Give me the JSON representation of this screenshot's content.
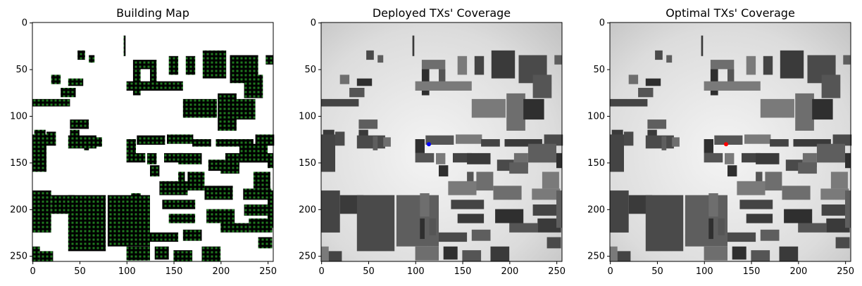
{
  "chart_data": [
    {
      "type": "heatmap",
      "title": "Building Map",
      "xlim": [
        0,
        255
      ],
      "ylim": [
        255,
        0
      ],
      "xticks": [
        0,
        50,
        100,
        150,
        200,
        250
      ],
      "yticks": [
        0,
        50,
        100,
        150,
        200,
        250
      ],
      "grid": false,
      "style": "binary",
      "markers": []
    },
    {
      "type": "heatmap",
      "title": "Deployed TXs' Coverage",
      "xlim": [
        0,
        255
      ],
      "ylim": [
        255,
        0
      ],
      "xticks": [
        0,
        50,
        100,
        150,
        200,
        250
      ],
      "yticks": [
        0,
        50,
        100,
        150,
        200,
        250
      ],
      "grid": false,
      "style": "gray",
      "markers": [
        {
          "x": 114,
          "y": 130,
          "color": "#0000ff"
        }
      ]
    },
    {
      "type": "heatmap",
      "title": "Optimal TXs' Coverage",
      "xlim": [
        0,
        255
      ],
      "ylim": [
        255,
        0
      ],
      "xticks": [
        0,
        50,
        100,
        150,
        200,
        250
      ],
      "yticks": [
        0,
        50,
        100,
        150,
        200,
        250
      ],
      "grid": false,
      "style": "gray",
      "markers": [
        {
          "x": 123,
          "y": 130,
          "color": "#ff0000"
        }
      ]
    }
  ],
  "buildings": [
    [
      97,
      14,
      2,
      22
    ],
    [
      48,
      30,
      8,
      10
    ],
    [
      60,
      35,
      6,
      8
    ],
    [
      107,
      40,
      25,
      10
    ],
    [
      107,
      50,
      8,
      28
    ],
    [
      125,
      50,
      7,
      16
    ],
    [
      145,
      36,
      10,
      20
    ],
    [
      163,
      36,
      10,
      20
    ],
    [
      181,
      30,
      25,
      30
    ],
    [
      210,
      35,
      30,
      30
    ],
    [
      248,
      35,
      8,
      10
    ],
    [
      20,
      56,
      10,
      10
    ],
    [
      38,
      60,
      16,
      8
    ],
    [
      30,
      70,
      16,
      10
    ],
    [
      100,
      63,
      60,
      10
    ],
    [
      0,
      82,
      40,
      8
    ],
    [
      2,
      115,
      12,
      20
    ],
    [
      15,
      117,
      10,
      15
    ],
    [
      40,
      104,
      20,
      10
    ],
    [
      197,
      76,
      20,
      40
    ],
    [
      215,
      82,
      22,
      22
    ],
    [
      225,
      56,
      20,
      25
    ],
    [
      160,
      82,
      36,
      20
    ],
    [
      0,
      120,
      15,
      40
    ],
    [
      40,
      115,
      10,
      8
    ],
    [
      38,
      121,
      30,
      14
    ],
    [
      55,
      122,
      5,
      15
    ],
    [
      66,
      123,
      8,
      10
    ],
    [
      100,
      125,
      10,
      15
    ],
    [
      111,
      121,
      30,
      10
    ],
    [
      143,
      120,
      28,
      10
    ],
    [
      170,
      125,
      20,
      8
    ],
    [
      195,
      125,
      40,
      8
    ],
    [
      237,
      120,
      20,
      12
    ],
    [
      220,
      130,
      30,
      20
    ],
    [
      205,
      140,
      15,
      15
    ],
    [
      250,
      140,
      6,
      16
    ],
    [
      100,
      140,
      20,
      10
    ],
    [
      122,
      140,
      10,
      12
    ],
    [
      140,
      140,
      20,
      10
    ],
    [
      155,
      140,
      25,
      12
    ],
    [
      187,
      147,
      18,
      12
    ],
    [
      200,
      150,
      20,
      12
    ],
    [
      165,
      160,
      18,
      20
    ],
    [
      125,
      153,
      10,
      12
    ],
    [
      155,
      160,
      7,
      18
    ],
    [
      235,
      160,
      18,
      18
    ],
    [
      0,
      180,
      20,
      45
    ],
    [
      20,
      185,
      25,
      20
    ],
    [
      38,
      185,
      40,
      60
    ],
    [
      80,
      185,
      45,
      55
    ],
    [
      105,
      183,
      10,
      25
    ],
    [
      105,
      210,
      5,
      22
    ],
    [
      115,
      210,
      7,
      18
    ],
    [
      135,
      170,
      30,
      15
    ],
    [
      138,
      190,
      35,
      10
    ],
    [
      145,
      205,
      28,
      10
    ],
    [
      125,
      225,
      30,
      10
    ],
    [
      160,
      222,
      20,
      12
    ],
    [
      183,
      175,
      30,
      15
    ],
    [
      185,
      200,
      30,
      15
    ],
    [
      200,
      215,
      30,
      10
    ],
    [
      224,
      178,
      30,
      12
    ],
    [
      225,
      195,
      30,
      12
    ],
    [
      230,
      210,
      25,
      15
    ],
    [
      240,
      230,
      15,
      12
    ],
    [
      250,
      180,
      6,
      40
    ],
    [
      100,
      240,
      25,
      15
    ],
    [
      130,
      240,
      15,
      14
    ],
    [
      150,
      244,
      20,
      12
    ],
    [
      0,
      240,
      8,
      16
    ],
    [
      8,
      245,
      14,
      11
    ],
    [
      180,
      240,
      20,
      16
    ]
  ]
}
